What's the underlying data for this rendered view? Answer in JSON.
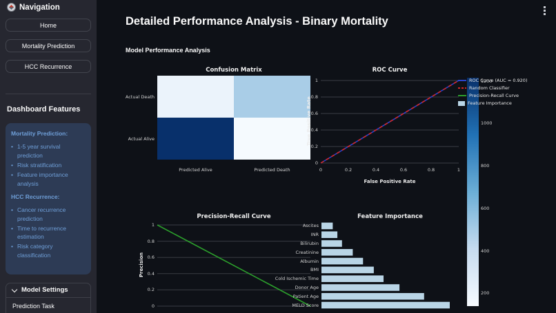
{
  "sidebar": {
    "nav_title": "Navigation",
    "nav_icon": "compass",
    "buttons": [
      "Home",
      "Mortality Prediction",
      "HCC Recurrence"
    ],
    "features_heading": "Dashboard Features",
    "info_sections": [
      {
        "heading": "Mortality Prediction:",
        "items": [
          "1-5 year survival prediction",
          "Risk stratification",
          "Feature importance analysis"
        ]
      },
      {
        "heading": "HCC Recurrence:",
        "items": [
          "Cancer recurrence prediction",
          "Time to recurrence estimation",
          "Risk category classification"
        ]
      }
    ],
    "bullet": "•",
    "expander_label": "Model Settings",
    "prediction_task_label": "Prediction Task"
  },
  "header": {
    "title": "Detailed Performance Analysis - Binary Mortality",
    "subtitle": "Model Performance Analysis"
  },
  "legend": {
    "entries": [
      {
        "label": "ROC Curve (AUC = 0.920)",
        "color": "#2a44cf",
        "marker": "line"
      },
      {
        "label": "Random Classifier",
        "color": "#d62728",
        "marker": "dashed-line"
      },
      {
        "label": "Precision-Recall Curve",
        "color": "#2ca02c",
        "marker": "line"
      },
      {
        "label": "Feature Importance",
        "color": "#b9d5e6",
        "marker": "patch"
      }
    ]
  },
  "chart_data": [
    {
      "type": "heatmap",
      "title": "Confusion Matrix",
      "rows": [
        "Actual Death",
        "Actual Alive"
      ],
      "cols": [
        "Predicted Alive",
        "Predicted Death"
      ],
      "values": [
        [
          205,
          495
        ],
        [
          1215,
          150
        ]
      ],
      "colormap": "Blues",
      "vmin": 140,
      "vmax": 1215,
      "colorbar_ticks": [
        200,
        400,
        600,
        800,
        1000,
        1200
      ]
    },
    {
      "type": "line",
      "title": "ROC Curve",
      "xlabel": "False Positive Rate",
      "ylabel": "True Positive Rate",
      "xlim": [
        0,
        1
      ],
      "ylim": [
        0,
        1
      ],
      "xticks": [
        0,
        0.2,
        0.4,
        0.6,
        0.8,
        1
      ],
      "yticks": [
        0,
        0.2,
        0.4,
        0.6,
        0.8,
        1
      ],
      "grid": "horizontal",
      "series": [
        {
          "name": "ROC Curve (AUC = 0.920)",
          "color": "#2a44cf",
          "style": "solid",
          "points": [
            [
              0,
              0
            ],
            [
              1,
              1
            ]
          ]
        },
        {
          "name": "Random Classifier",
          "color": "#d62728",
          "style": "dashed",
          "points": [
            [
              0,
              0
            ],
            [
              1,
              1
            ]
          ]
        }
      ]
    },
    {
      "type": "line",
      "title": "Precision-Recall Curve",
      "ylabel": "Precision",
      "xlim": [
        0,
        1
      ],
      "ylim": [
        0,
        1
      ],
      "yticks": [
        0,
        0.2,
        0.4,
        0.6,
        0.8,
        1
      ],
      "grid": "horizontal",
      "series": [
        {
          "name": "Precision-Recall Curve",
          "color": "#2ca02c",
          "style": "solid",
          "points": [
            [
              0,
              1
            ],
            [
              1,
              0
            ]
          ]
        }
      ]
    },
    {
      "type": "bar",
      "title": "Feature Importance",
      "orientation": "horizontal",
      "categories": [
        "Ascites",
        "INR",
        "Bilirubin",
        "Creatinine",
        "Albumin",
        "BMI",
        "Cold Ischemic Time",
        "Donor Age",
        "Patient Age",
        "MELD Score"
      ],
      "values": [
        0.022,
        0.031,
        0.04,
        0.061,
        0.081,
        0.102,
        0.121,
        0.152,
        0.2,
        0.25
      ],
      "bar_color": "#b9d5e6"
    }
  ],
  "colors": {
    "page_bg": "#0e1117",
    "sidebar_bg": "#262730",
    "info_box_bg": "#2d3b55",
    "info_text": "#6f9fd8",
    "grid_line": "#3a3d44",
    "roc_blue": "#2a44cf",
    "random_red": "#d62728",
    "pr_green": "#2ca02c",
    "bar_blue": "#b9d5e6"
  }
}
